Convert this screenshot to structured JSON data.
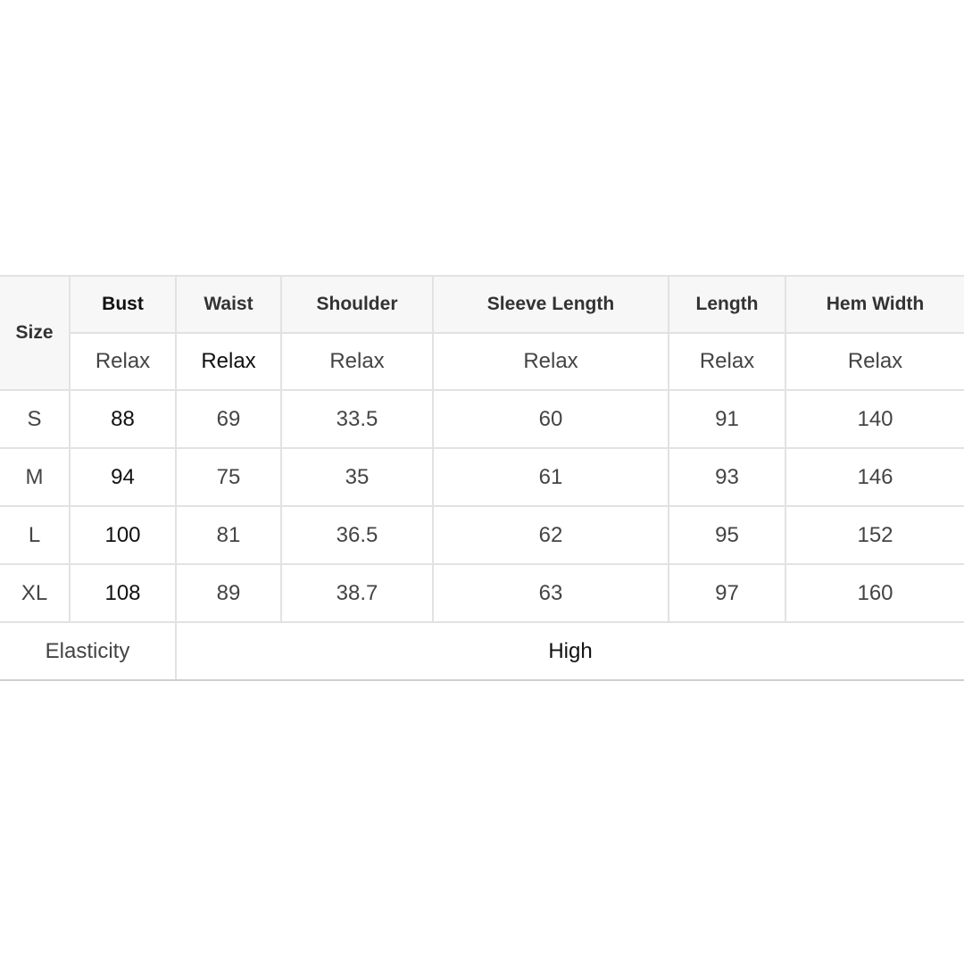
{
  "header": {
    "size_label": "Size",
    "columns": [
      "Bust",
      "Waist",
      "Shoulder",
      "Sleeve Length",
      "Length",
      "Hem Width"
    ],
    "fit": [
      "Relax",
      "Relax",
      "Relax",
      "Relax",
      "Relax",
      "Relax"
    ]
  },
  "rows": [
    {
      "size": "S",
      "values": [
        "88",
        "69",
        "33.5",
        "60",
        "91",
        "140"
      ]
    },
    {
      "size": "M",
      "values": [
        "94",
        "75",
        "35",
        "61",
        "93",
        "146"
      ]
    },
    {
      "size": "L",
      "values": [
        "100",
        "81",
        "36.5",
        "62",
        "95",
        "152"
      ]
    },
    {
      "size": "XL",
      "values": [
        "108",
        "89",
        "38.7",
        "63",
        "97",
        "160"
      ]
    }
  ],
  "elasticity": {
    "label": "Elasticity",
    "value": "High"
  }
}
